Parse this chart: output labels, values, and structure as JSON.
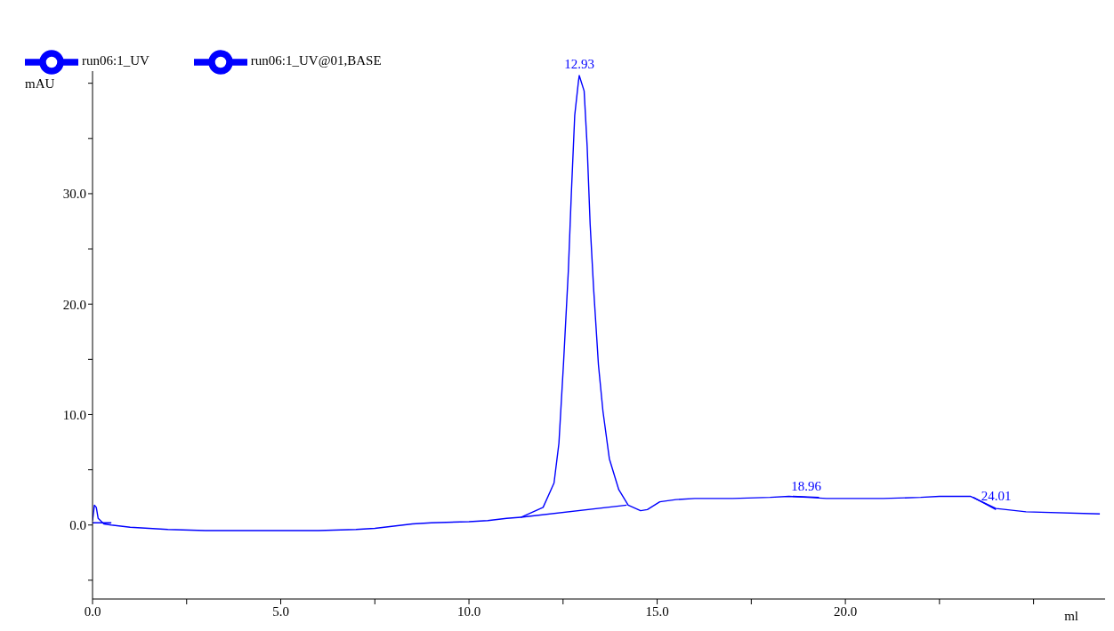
{
  "chart_data": {
    "type": "line",
    "xlabel": "ml",
    "ylabel": "mAU",
    "xlim": [
      0,
      26.9
    ],
    "ylim": [
      -6.7,
      41.1
    ],
    "xticks": [
      {
        "value": 0,
        "label": "0.0"
      },
      {
        "value": 2.5,
        "label": null
      },
      {
        "value": 5,
        "label": "5.0"
      },
      {
        "value": 7.5,
        "label": null
      },
      {
        "value": 10,
        "label": "10.0"
      },
      {
        "value": 12.5,
        "label": null
      },
      {
        "value": 15,
        "label": "15.0"
      },
      {
        "value": 17.5,
        "label": null
      },
      {
        "value": 20,
        "label": "20.0"
      },
      {
        "value": 22.5,
        "label": null
      },
      {
        "value": 25,
        "label": null
      }
    ],
    "yticks": [
      {
        "value": -5,
        "label": null
      },
      {
        "value": 0,
        "label": "0.0"
      },
      {
        "value": 5,
        "label": null
      },
      {
        "value": 10,
        "label": "10.0"
      },
      {
        "value": 15,
        "label": null
      },
      {
        "value": 20,
        "label": "20.0"
      },
      {
        "value": 25,
        "label": null
      },
      {
        "value": 30,
        "label": "30.0"
      },
      {
        "value": 35,
        "label": null
      },
      {
        "value": 40,
        "label": null
      }
    ],
    "legend": "top left",
    "marker": "none",
    "line_style": "solid",
    "series": [
      {
        "name": "run06:1_UV",
        "color": "#0000ff",
        "x": [
          0,
          0.05,
          0.1,
          0.15,
          0.3,
          0.5,
          1,
          2,
          3,
          4,
          5,
          6,
          7,
          7.5,
          8,
          8.5,
          9,
          10,
          10.5,
          11,
          11.38,
          11.97,
          12.26,
          12.39,
          12.51,
          12.64,
          12.72,
          12.81,
          12.91,
          12.93,
          13.06,
          13.14,
          13.22,
          13.31,
          13.44,
          13.56,
          13.73,
          13.98,
          14.23,
          14.56,
          14.74,
          15.07,
          15.5,
          16,
          17,
          18,
          18.5,
          19,
          19.5,
          20,
          21,
          22,
          22.5,
          23,
          23.32,
          24,
          24.8,
          26.76
        ],
        "values": [
          0.4,
          1.8,
          1.6,
          0.6,
          0.1,
          0,
          -0.2,
          -0.4,
          -0.5,
          -0.5,
          -0.5,
          -0.5,
          -0.4,
          -0.3,
          -0.1,
          0.1,
          0.2,
          0.3,
          0.4,
          0.6,
          0.7,
          1.6,
          3.8,
          7.4,
          14.5,
          23,
          30,
          37.1,
          40.2,
          40.7,
          39.3,
          34.3,
          27.2,
          21.5,
          14.5,
          10.3,
          6,
          3.2,
          1.8,
          1.3,
          1.4,
          2.1,
          2.3,
          2.4,
          2.4,
          2.5,
          2.6,
          2.5,
          2.4,
          2.4,
          2.4,
          2.5,
          2.6,
          2.6,
          2.6,
          1.5,
          1.2,
          1
        ]
      },
      {
        "name": "run06:1_UV@01,BASE",
        "color": "#0000ff",
        "x": [
          0,
          0.5,
          0.6,
          11.38,
          14.19,
          14.3,
          18.6,
          19.3,
          19.4,
          23.4,
          24
        ],
        "values": [
          0.2,
          0.2,
          null,
          0.7,
          1.8,
          null,
          2.6,
          2.5,
          null,
          2.5,
          1.4
        ]
      }
    ],
    "annotations": [
      {
        "text": "12.93",
        "x": 12.93,
        "y": 40.7
      },
      {
        "text": "18.96",
        "x": 18.96,
        "y": 2.5
      },
      {
        "text": "24.01",
        "x": 24.01,
        "y": 1.6
      }
    ]
  }
}
